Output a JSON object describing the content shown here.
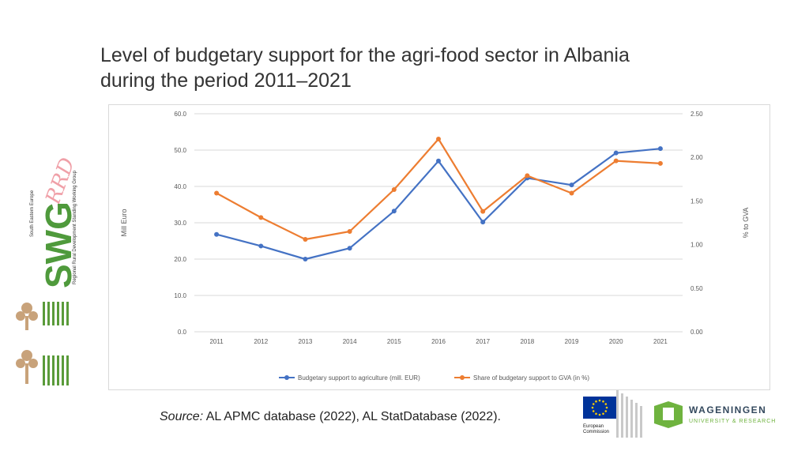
{
  "title_line1": "Level of budgetary support for the agri-food sector  in Albania",
  "title_line2": "during the period 2011–2021",
  "source_label": "Source:",
  "source_text": "AL APMC database (2022), AL StatDatabase (2022).",
  "logos": {
    "swg_text": "SWG",
    "swg_script": "RRD",
    "swg_side_1": "South Eastern Europe",
    "swg_side_2": "Regional Rural Development Standing Working Group",
    "ec_line1": "European",
    "ec_line2": "Commission",
    "wur_line1": "WAGENINGEN",
    "wur_line2": "UNIVERSITY & RESEARCH"
  },
  "colors": {
    "series1": "#4472C4",
    "series2": "#ED7D31",
    "grid": "#d9d9d9",
    "axis_text": "#595959"
  },
  "chart_data": {
    "type": "line",
    "x": [
      "2011",
      "2012",
      "2013",
      "2014",
      "2015",
      "2016",
      "2017",
      "2018",
      "2019",
      "2020",
      "2021"
    ],
    "ylabel": "Mill Euro",
    "y2label": "% to GVA",
    "ylim": [
      0,
      60
    ],
    "y2lim": [
      0,
      2.5
    ],
    "yticks": [
      "0.0",
      "10.0",
      "20.0",
      "30.0",
      "40.0",
      "50.0",
      "60.0"
    ],
    "y2ticks": [
      "0.00",
      "0.50",
      "1.00",
      "1.50",
      "2.00",
      "2.50"
    ],
    "grid": true,
    "legend": "bottom",
    "series": [
      {
        "name": "Budgetary support to agriculture (mill. EUR)",
        "axis": "left",
        "color": "#4472C4",
        "values": [
          26.8,
          23.6,
          20.0,
          23.0,
          33.2,
          47.0,
          30.2,
          42.3,
          40.4,
          49.2,
          50.4
        ]
      },
      {
        "name": "Share of budgetary support to GVA (in %)",
        "axis": "right",
        "color": "#ED7D31",
        "values": [
          1.59,
          1.31,
          1.06,
          1.15,
          1.63,
          2.21,
          1.38,
          1.79,
          1.59,
          1.96,
          1.93
        ]
      }
    ]
  }
}
